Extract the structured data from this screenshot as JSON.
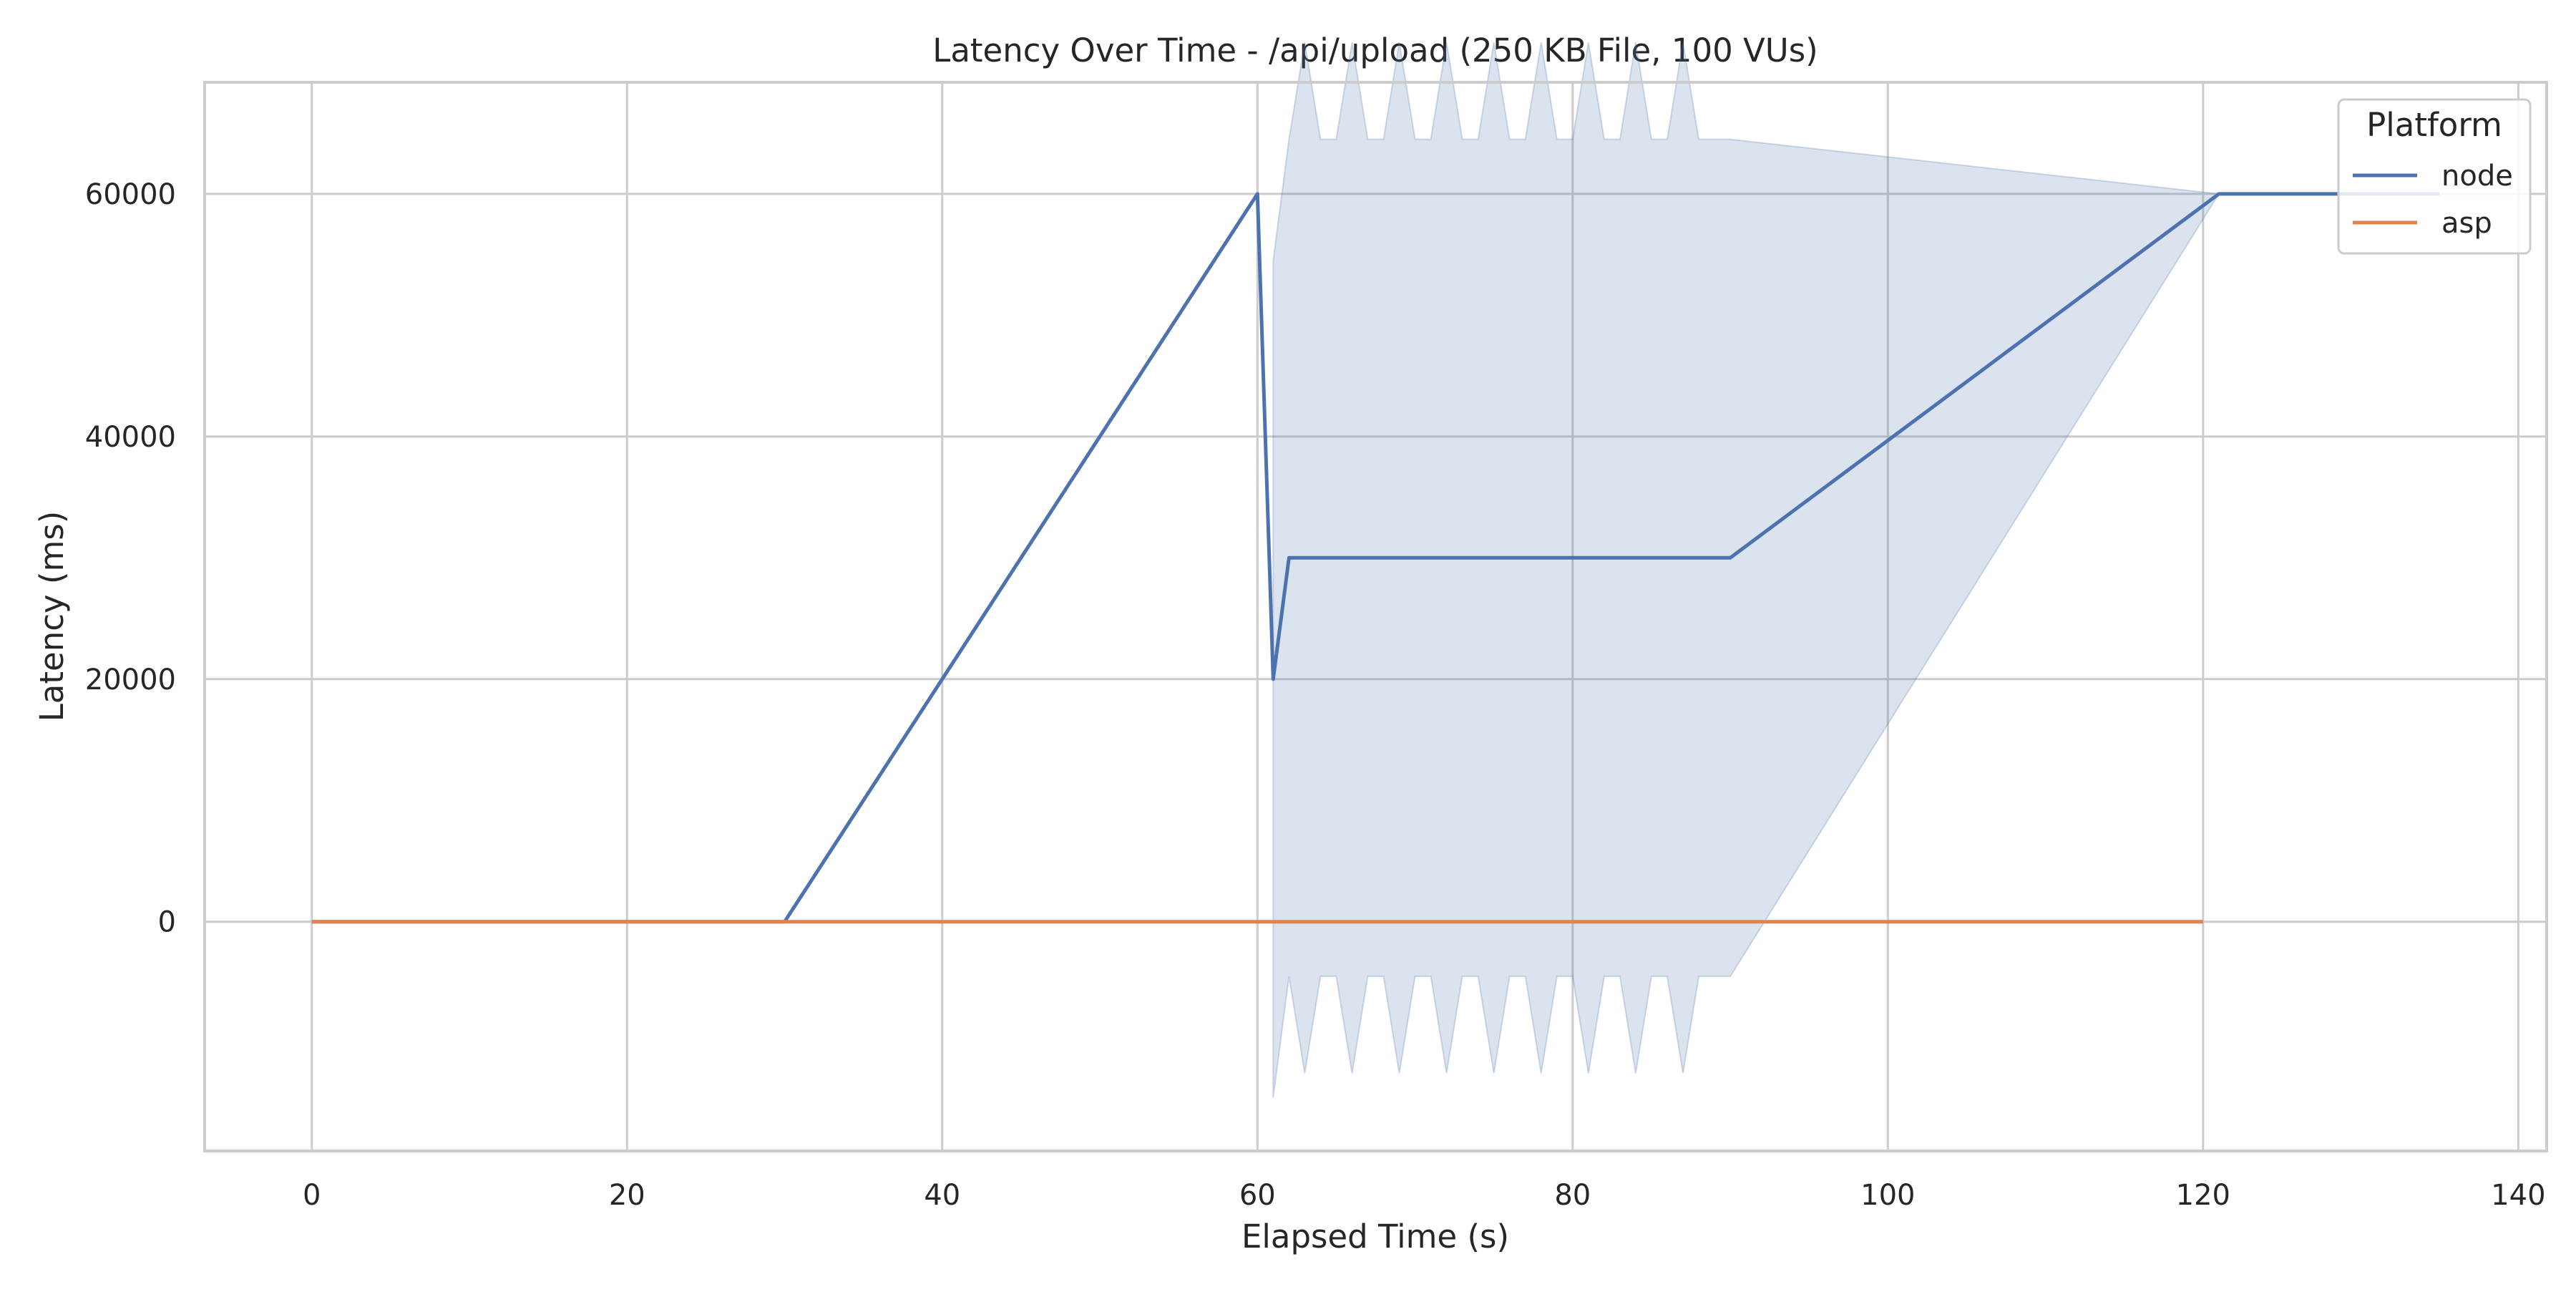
{
  "chart_data": {
    "type": "line",
    "title": "Latency Over Time - /api/upload (250 KB File, 100 VUs)",
    "xlabel": "Elapsed Time (s)",
    "ylabel": "Latency (ms)",
    "xlim": [
      -6.8,
      141.8
    ],
    "ylim": [
      -18900,
      69200
    ],
    "xticks": [
      0,
      20,
      40,
      60,
      80,
      100,
      120,
      140
    ],
    "yticks": [
      0,
      20000,
      40000,
      60000
    ],
    "grid": true,
    "legend": {
      "title": "Platform",
      "placement": "top-right",
      "entries": [
        "node",
        "asp"
      ]
    },
    "series": [
      {
        "name": "node",
        "color": "#4c72b0",
        "x": [
          0,
          30,
          60,
          61,
          62,
          63,
          64,
          65,
          66,
          67,
          68,
          69,
          70,
          71,
          72,
          73,
          74,
          75,
          76,
          77,
          78,
          79,
          80,
          81,
          82,
          83,
          84,
          85,
          86,
          87,
          88,
          89,
          90,
          121,
          135
        ],
        "y": [
          0,
          0,
          60000,
          20000,
          30000,
          30000,
          30000,
          30000,
          30000,
          30000,
          30000,
          30000,
          30000,
          30000,
          30000,
          30000,
          30000,
          30000,
          30000,
          30000,
          30000,
          30000,
          30000,
          30000,
          30000,
          30000,
          30000,
          30000,
          30000,
          30000,
          30000,
          30000,
          30000,
          60000,
          60000
        ],
        "ci_lower": [
          0,
          0,
          60000,
          -14500,
          -4500,
          -12500,
          -4500,
          -4500,
          -12500,
          -4500,
          -4500,
          -12500,
          -4500,
          -4500,
          -12500,
          -4500,
          -4500,
          -12500,
          -4500,
          -4500,
          -12500,
          -4500,
          -4500,
          -12500,
          -4500,
          -4500,
          -12500,
          -4500,
          -4500,
          -12500,
          -4500,
          -4500,
          -4500,
          60000,
          60000
        ],
        "ci_upper": [
          0,
          0,
          60000,
          54500,
          64500,
          72500,
          64500,
          64500,
          72500,
          64500,
          64500,
          72500,
          64500,
          64500,
          72500,
          64500,
          64500,
          72500,
          64500,
          64500,
          72500,
          64500,
          64500,
          72500,
          64500,
          64500,
          72500,
          64500,
          64500,
          72500,
          64500,
          64500,
          64500,
          60000,
          60000
        ]
      },
      {
        "name": "asp",
        "color": "#dd8452",
        "x": [
          0,
          30,
          60,
          90,
          120
        ],
        "y": [
          0,
          0,
          0,
          0,
          0
        ]
      }
    ],
    "ci_fill_color": "#4c72b0"
  }
}
